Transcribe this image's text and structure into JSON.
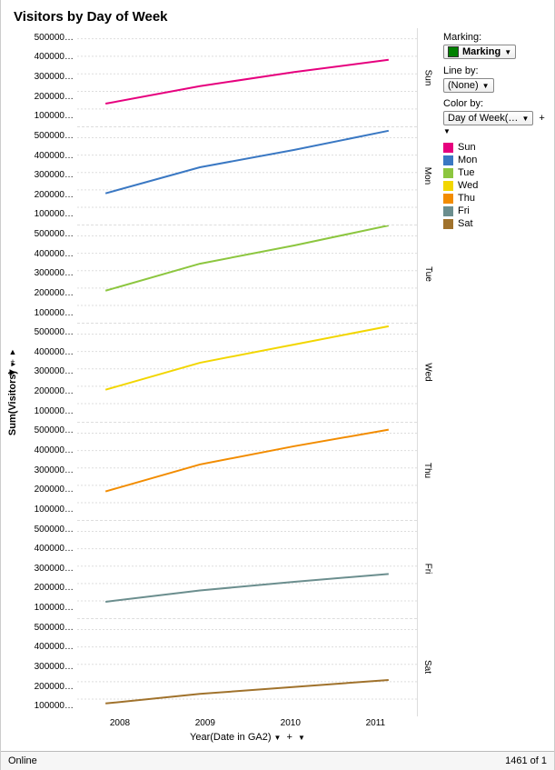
{
  "title": "Visitors by Day of Week",
  "yaxis": {
    "label": "Sum(Visitors)"
  },
  "xaxis": {
    "label": "Year(Date in GA2)",
    "ticks": [
      "2008",
      "2009",
      "2010",
      "2011"
    ]
  },
  "ytick_labels": [
    "500000…",
    "400000…",
    "300000…",
    "200000…",
    "100000…"
  ],
  "ylim": [
    0,
    560000
  ],
  "xlim": [
    2007.7,
    2011.3
  ],
  "panel_bg": "#ffffff",
  "grid_color": "#dddddd",
  "line_width": 2,
  "panels": [
    {
      "key": "sun",
      "label": "Sun",
      "color": "#e6007e",
      "values": [
        [
          2008,
          130000
        ],
        [
          2009,
          230000
        ],
        [
          2010,
          310000
        ],
        [
          2011,
          380000
        ]
      ]
    },
    {
      "key": "mon",
      "label": "Mon",
      "color": "#3a78c3",
      "values": [
        [
          2008,
          180000
        ],
        [
          2009,
          330000
        ],
        [
          2010,
          430000
        ],
        [
          2011,
          540000
        ]
      ]
    },
    {
      "key": "tue",
      "label": "Tue",
      "color": "#8cc63f",
      "values": [
        [
          2008,
          185000
        ],
        [
          2009,
          340000
        ],
        [
          2010,
          445000
        ],
        [
          2011,
          560000
        ]
      ]
    },
    {
      "key": "wed",
      "label": "Wed",
      "color": "#f2d600",
      "values": [
        [
          2008,
          180000
        ],
        [
          2009,
          335000
        ],
        [
          2010,
          440000
        ],
        [
          2011,
          545000
        ]
      ]
    },
    {
      "key": "thu",
      "label": "Thu",
      "color": "#f28c00",
      "values": [
        [
          2008,
          165000
        ],
        [
          2009,
          320000
        ],
        [
          2010,
          425000
        ],
        [
          2011,
          520000
        ]
      ]
    },
    {
      "key": "fri",
      "label": "Fri",
      "color": "#6b8e8e",
      "values": [
        [
          2008,
          95000
        ],
        [
          2009,
          160000
        ],
        [
          2010,
          210000
        ],
        [
          2011,
          255000
        ]
      ]
    },
    {
      "key": "sat",
      "label": "Sat",
      "color": "#a0722c",
      "values": [
        [
          2008,
          75000
        ],
        [
          2009,
          130000
        ],
        [
          2010,
          170000
        ],
        [
          2011,
          210000
        ]
      ]
    }
  ],
  "legend": {
    "marking_label": "Marking:",
    "marking_value": "Marking",
    "marking_color": "#008000",
    "lineby_label": "Line by:",
    "lineby_value": "(None)",
    "colorby_label": "Color by:",
    "colorby_value": "Day of Week(…",
    "items": [
      {
        "label": "Sun",
        "color": "#e6007e"
      },
      {
        "label": "Mon",
        "color": "#3a78c3"
      },
      {
        "label": "Tue",
        "color": "#8cc63f"
      },
      {
        "label": "Wed",
        "color": "#f2d600"
      },
      {
        "label": "Thu",
        "color": "#f28c00"
      },
      {
        "label": "Fri",
        "color": "#6b8e8e"
      },
      {
        "label": "Sat",
        "color": "#a0722c"
      }
    ]
  },
  "status": {
    "left": "Online",
    "right": "1461 of 1"
  }
}
